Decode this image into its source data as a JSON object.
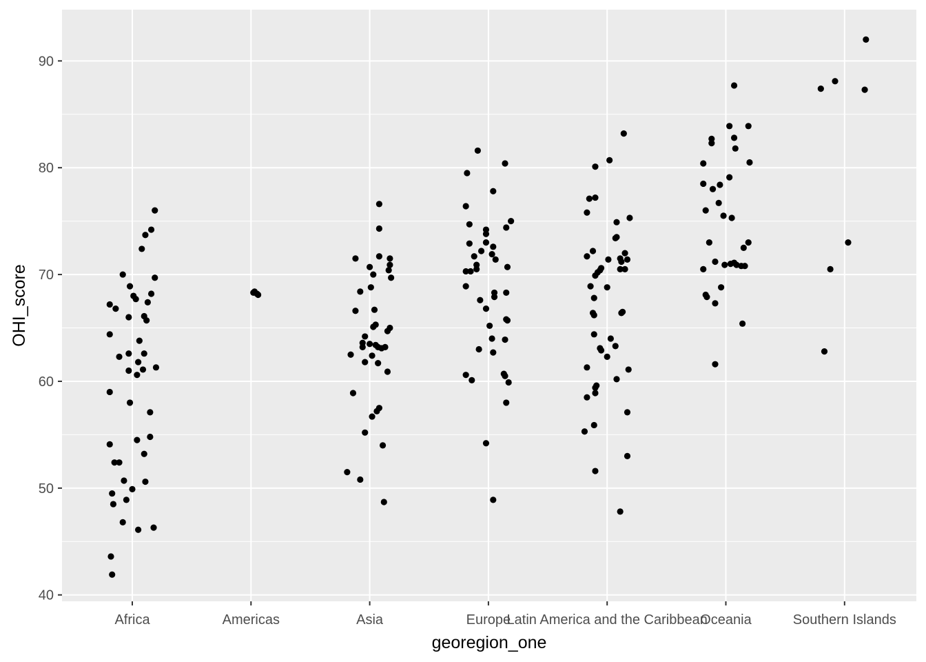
{
  "chart_data": {
    "type": "scatter",
    "subtype": "jitter",
    "title": "",
    "xlabel": "georegion_one",
    "ylabel": "OHI_score",
    "categories": [
      "Africa",
      "Americas",
      "Asia",
      "Europe",
      "Latin America and the Caribbean",
      "Oceania",
      "Southern Islands"
    ],
    "yticks": [
      40,
      50,
      60,
      70,
      80,
      90
    ],
    "ylim": [
      39.4,
      94.8
    ],
    "grid": true,
    "colors": {
      "panel": "#EBEBEB",
      "grid": "#FFFFFF",
      "point": "#000000",
      "tick_text": "#4D4D4D"
    },
    "points": [
      {
        "cat": 0,
        "jitter": -0.19,
        "y": 67.2
      },
      {
        "cat": 0,
        "jitter": -0.14,
        "y": 66.8
      },
      {
        "cat": 0,
        "jitter": -0.08,
        "y": 70.0
      },
      {
        "cat": 0,
        "jitter": -0.02,
        "y": 68.9
      },
      {
        "cat": 0,
        "jitter": 0.01,
        "y": 68.0
      },
      {
        "cat": 0,
        "jitter": 0.03,
        "y": 67.7
      },
      {
        "cat": 0,
        "jitter": -0.03,
        "y": 66.0
      },
      {
        "cat": 0,
        "jitter": 0.1,
        "y": 66.1
      },
      {
        "cat": 0,
        "jitter": 0.12,
        "y": 65.7
      },
      {
        "cat": 0,
        "jitter": -0.19,
        "y": 64.4
      },
      {
        "cat": 0,
        "jitter": 0.06,
        "y": 63.8
      },
      {
        "cat": 0,
        "jitter": -0.11,
        "y": 62.3
      },
      {
        "cat": 0,
        "jitter": -0.03,
        "y": 62.6
      },
      {
        "cat": 0,
        "jitter": 0.1,
        "y": 62.6
      },
      {
        "cat": 0,
        "jitter": 0.05,
        "y": 61.8
      },
      {
        "cat": 0,
        "jitter": -0.03,
        "y": 61.0
      },
      {
        "cat": 0,
        "jitter": 0.04,
        "y": 60.6
      },
      {
        "cat": 0,
        "jitter": 0.09,
        "y": 61.1
      },
      {
        "cat": 0,
        "jitter": 0.2,
        "y": 61.3
      },
      {
        "cat": 0,
        "jitter": -0.19,
        "y": 59.0
      },
      {
        "cat": 0,
        "jitter": -0.02,
        "y": 58.0
      },
      {
        "cat": 0,
        "jitter": 0.15,
        "y": 57.1
      },
      {
        "cat": 0,
        "jitter": 0.15,
        "y": 54.8
      },
      {
        "cat": 0,
        "jitter": 0.04,
        "y": 54.5
      },
      {
        "cat": 0,
        "jitter": -0.19,
        "y": 54.1
      },
      {
        "cat": 0,
        "jitter": 0.1,
        "y": 53.2
      },
      {
        "cat": 0,
        "jitter": -0.15,
        "y": 52.4
      },
      {
        "cat": 0,
        "jitter": -0.11,
        "y": 52.4
      },
      {
        "cat": 0,
        "jitter": -0.07,
        "y": 50.7
      },
      {
        "cat": 0,
        "jitter": 0.11,
        "y": 50.6
      },
      {
        "cat": 0,
        "jitter": 0.0,
        "y": 49.9
      },
      {
        "cat": 0,
        "jitter": -0.17,
        "y": 49.5
      },
      {
        "cat": 0,
        "jitter": -0.05,
        "y": 48.9
      },
      {
        "cat": 0,
        "jitter": -0.16,
        "y": 48.5
      },
      {
        "cat": 0,
        "jitter": -0.08,
        "y": 46.8
      },
      {
        "cat": 0,
        "jitter": 0.05,
        "y": 46.1
      },
      {
        "cat": 0,
        "jitter": 0.18,
        "y": 46.3
      },
      {
        "cat": 0,
        "jitter": -0.18,
        "y": 43.6
      },
      {
        "cat": 0,
        "jitter": -0.17,
        "y": 41.9
      },
      {
        "cat": 0,
        "jitter": 0.19,
        "y": 76.0
      },
      {
        "cat": 0,
        "jitter": 0.16,
        "y": 74.2
      },
      {
        "cat": 0,
        "jitter": 0.11,
        "y": 73.7
      },
      {
        "cat": 0,
        "jitter": 0.08,
        "y": 72.4
      },
      {
        "cat": 0,
        "jitter": 0.19,
        "y": 69.7
      },
      {
        "cat": 0,
        "jitter": 0.16,
        "y": 68.2
      },
      {
        "cat": 0,
        "jitter": 0.13,
        "y": 67.4
      },
      {
        "cat": 1,
        "jitter": 0.02,
        "y": 68.3
      },
      {
        "cat": 1,
        "jitter": 0.03,
        "y": 68.4
      },
      {
        "cat": 1,
        "jitter": 0.05,
        "y": 68.2
      },
      {
        "cat": 1,
        "jitter": 0.06,
        "y": 68.1
      },
      {
        "cat": 2,
        "jitter": 0.08,
        "y": 76.6
      },
      {
        "cat": 2,
        "jitter": 0.08,
        "y": 74.3
      },
      {
        "cat": 2,
        "jitter": 0.08,
        "y": 71.7
      },
      {
        "cat": 2,
        "jitter": 0.17,
        "y": 71.5
      },
      {
        "cat": 2,
        "jitter": -0.12,
        "y": 71.5
      },
      {
        "cat": 2,
        "jitter": 0.17,
        "y": 70.9
      },
      {
        "cat": 2,
        "jitter": 0.0,
        "y": 70.7
      },
      {
        "cat": 2,
        "jitter": 0.16,
        "y": 70.4
      },
      {
        "cat": 2,
        "jitter": 0.03,
        "y": 70.0
      },
      {
        "cat": 2,
        "jitter": 0.18,
        "y": 69.7
      },
      {
        "cat": 2,
        "jitter": 0.01,
        "y": 68.8
      },
      {
        "cat": 2,
        "jitter": -0.08,
        "y": 68.4
      },
      {
        "cat": 2,
        "jitter": 0.04,
        "y": 66.7
      },
      {
        "cat": 2,
        "jitter": -0.12,
        "y": 66.6
      },
      {
        "cat": 2,
        "jitter": 0.05,
        "y": 65.3
      },
      {
        "cat": 2,
        "jitter": 0.03,
        "y": 65.1
      },
      {
        "cat": 2,
        "jitter": 0.17,
        "y": 65.0
      },
      {
        "cat": 2,
        "jitter": 0.15,
        "y": 64.7
      },
      {
        "cat": 2,
        "jitter": -0.04,
        "y": 64.2
      },
      {
        "cat": 2,
        "jitter": -0.06,
        "y": 63.6
      },
      {
        "cat": 2,
        "jitter": 0.0,
        "y": 63.5
      },
      {
        "cat": 2,
        "jitter": 0.05,
        "y": 63.4
      },
      {
        "cat": 2,
        "jitter": 0.07,
        "y": 63.2
      },
      {
        "cat": 2,
        "jitter": -0.06,
        "y": 63.2
      },
      {
        "cat": 2,
        "jitter": 0.1,
        "y": 63.1
      },
      {
        "cat": 2,
        "jitter": 0.13,
        "y": 63.2
      },
      {
        "cat": 2,
        "jitter": -0.16,
        "y": 62.5
      },
      {
        "cat": 2,
        "jitter": 0.02,
        "y": 62.4
      },
      {
        "cat": 2,
        "jitter": -0.04,
        "y": 61.8
      },
      {
        "cat": 2,
        "jitter": 0.07,
        "y": 61.7
      },
      {
        "cat": 2,
        "jitter": 0.15,
        "y": 60.9
      },
      {
        "cat": 2,
        "jitter": -0.14,
        "y": 58.9
      },
      {
        "cat": 2,
        "jitter": 0.08,
        "y": 57.5
      },
      {
        "cat": 2,
        "jitter": 0.06,
        "y": 57.2
      },
      {
        "cat": 2,
        "jitter": 0.02,
        "y": 56.7
      },
      {
        "cat": 2,
        "jitter": -0.04,
        "y": 55.2
      },
      {
        "cat": 2,
        "jitter": 0.11,
        "y": 54.0
      },
      {
        "cat": 2,
        "jitter": -0.19,
        "y": 51.5
      },
      {
        "cat": 2,
        "jitter": -0.08,
        "y": 50.8
      },
      {
        "cat": 2,
        "jitter": 0.12,
        "y": 48.7
      },
      {
        "cat": 3,
        "jitter": -0.09,
        "y": 81.6
      },
      {
        "cat": 3,
        "jitter": 0.14,
        "y": 80.4
      },
      {
        "cat": 3,
        "jitter": -0.18,
        "y": 79.5
      },
      {
        "cat": 3,
        "jitter": 0.04,
        "y": 77.8
      },
      {
        "cat": 3,
        "jitter": -0.19,
        "y": 76.4
      },
      {
        "cat": 3,
        "jitter": 0.19,
        "y": 75.0
      },
      {
        "cat": 3,
        "jitter": -0.16,
        "y": 74.7
      },
      {
        "cat": 3,
        "jitter": 0.15,
        "y": 74.4
      },
      {
        "cat": 3,
        "jitter": -0.02,
        "y": 74.2
      },
      {
        "cat": 3,
        "jitter": -0.02,
        "y": 73.8
      },
      {
        "cat": 3,
        "jitter": -0.02,
        "y": 73.0
      },
      {
        "cat": 3,
        "jitter": -0.16,
        "y": 72.9
      },
      {
        "cat": 3,
        "jitter": 0.04,
        "y": 72.6
      },
      {
        "cat": 3,
        "jitter": -0.06,
        "y": 72.2
      },
      {
        "cat": 3,
        "jitter": 0.03,
        "y": 71.9
      },
      {
        "cat": 3,
        "jitter": -0.12,
        "y": 71.7
      },
      {
        "cat": 3,
        "jitter": 0.06,
        "y": 71.4
      },
      {
        "cat": 3,
        "jitter": -0.1,
        "y": 70.9
      },
      {
        "cat": 3,
        "jitter": -0.1,
        "y": 70.5
      },
      {
        "cat": 3,
        "jitter": 0.16,
        "y": 70.7
      },
      {
        "cat": 3,
        "jitter": -0.15,
        "y": 70.3
      },
      {
        "cat": 3,
        "jitter": -0.19,
        "y": 70.3
      },
      {
        "cat": 3,
        "jitter": -0.19,
        "y": 68.9
      },
      {
        "cat": 3,
        "jitter": 0.05,
        "y": 68.3
      },
      {
        "cat": 3,
        "jitter": 0.15,
        "y": 68.3
      },
      {
        "cat": 3,
        "jitter": 0.05,
        "y": 67.9
      },
      {
        "cat": 3,
        "jitter": -0.07,
        "y": 67.6
      },
      {
        "cat": 3,
        "jitter": -0.02,
        "y": 66.8
      },
      {
        "cat": 3,
        "jitter": 0.15,
        "y": 65.8
      },
      {
        "cat": 3,
        "jitter": 0.16,
        "y": 65.7
      },
      {
        "cat": 3,
        "jitter": 0.01,
        "y": 65.2
      },
      {
        "cat": 3,
        "jitter": 0.03,
        "y": 64.0
      },
      {
        "cat": 3,
        "jitter": 0.14,
        "y": 63.9
      },
      {
        "cat": 3,
        "jitter": -0.08,
        "y": 63.0
      },
      {
        "cat": 3,
        "jitter": 0.04,
        "y": 62.7
      },
      {
        "cat": 3,
        "jitter": -0.19,
        "y": 60.6
      },
      {
        "cat": 3,
        "jitter": 0.13,
        "y": 60.7
      },
      {
        "cat": 3,
        "jitter": 0.14,
        "y": 60.5
      },
      {
        "cat": 3,
        "jitter": -0.14,
        "y": 60.1
      },
      {
        "cat": 3,
        "jitter": 0.17,
        "y": 59.9
      },
      {
        "cat": 3,
        "jitter": 0.15,
        "y": 58.0
      },
      {
        "cat": 3,
        "jitter": -0.02,
        "y": 54.2
      },
      {
        "cat": 3,
        "jitter": 0.04,
        "y": 48.9
      },
      {
        "cat": 4,
        "jitter": 0.14,
        "y": 83.2
      },
      {
        "cat": 4,
        "jitter": 0.02,
        "y": 80.7
      },
      {
        "cat": 4,
        "jitter": -0.1,
        "y": 80.1
      },
      {
        "cat": 4,
        "jitter": -0.15,
        "y": 77.1
      },
      {
        "cat": 4,
        "jitter": -0.1,
        "y": 77.2
      },
      {
        "cat": 4,
        "jitter": -0.17,
        "y": 75.8
      },
      {
        "cat": 4,
        "jitter": 0.19,
        "y": 75.3
      },
      {
        "cat": 4,
        "jitter": 0.08,
        "y": 74.9
      },
      {
        "cat": 4,
        "jitter": 0.08,
        "y": 73.5
      },
      {
        "cat": 4,
        "jitter": 0.07,
        "y": 73.4
      },
      {
        "cat": 4,
        "jitter": -0.12,
        "y": 72.2
      },
      {
        "cat": 4,
        "jitter": 0.15,
        "y": 72.0
      },
      {
        "cat": 4,
        "jitter": -0.17,
        "y": 71.7
      },
      {
        "cat": 4,
        "jitter": 0.01,
        "y": 71.4
      },
      {
        "cat": 4,
        "jitter": 0.11,
        "y": 71.5
      },
      {
        "cat": 4,
        "jitter": 0.17,
        "y": 71.4
      },
      {
        "cat": 4,
        "jitter": 0.12,
        "y": 71.2
      },
      {
        "cat": 4,
        "jitter": -0.05,
        "y": 70.6
      },
      {
        "cat": 4,
        "jitter": -0.06,
        "y": 70.4
      },
      {
        "cat": 4,
        "jitter": -0.08,
        "y": 70.2
      },
      {
        "cat": 4,
        "jitter": -0.1,
        "y": 69.9
      },
      {
        "cat": 4,
        "jitter": 0.11,
        "y": 70.5
      },
      {
        "cat": 4,
        "jitter": 0.15,
        "y": 70.5
      },
      {
        "cat": 4,
        "jitter": -0.14,
        "y": 68.9
      },
      {
        "cat": 4,
        "jitter": 0.0,
        "y": 68.8
      },
      {
        "cat": 4,
        "jitter": -0.11,
        "y": 67.8
      },
      {
        "cat": 4,
        "jitter": -0.12,
        "y": 66.4
      },
      {
        "cat": 4,
        "jitter": -0.11,
        "y": 66.2
      },
      {
        "cat": 4,
        "jitter": 0.13,
        "y": 66.5
      },
      {
        "cat": 4,
        "jitter": 0.12,
        "y": 66.4
      },
      {
        "cat": 4,
        "jitter": -0.11,
        "y": 64.4
      },
      {
        "cat": 4,
        "jitter": 0.03,
        "y": 64.0
      },
      {
        "cat": 4,
        "jitter": -0.06,
        "y": 63.1
      },
      {
        "cat": 4,
        "jitter": -0.05,
        "y": 62.9
      },
      {
        "cat": 4,
        "jitter": 0.07,
        "y": 63.3
      },
      {
        "cat": 4,
        "jitter": 0.0,
        "y": 62.3
      },
      {
        "cat": 4,
        "jitter": -0.17,
        "y": 61.3
      },
      {
        "cat": 4,
        "jitter": 0.18,
        "y": 61.1
      },
      {
        "cat": 4,
        "jitter": 0.08,
        "y": 60.2
      },
      {
        "cat": 4,
        "jitter": -0.09,
        "y": 59.6
      },
      {
        "cat": 4,
        "jitter": -0.1,
        "y": 59.4
      },
      {
        "cat": 4,
        "jitter": -0.1,
        "y": 58.9
      },
      {
        "cat": 4,
        "jitter": -0.17,
        "y": 58.5
      },
      {
        "cat": 4,
        "jitter": 0.17,
        "y": 57.1
      },
      {
        "cat": 4,
        "jitter": -0.11,
        "y": 55.9
      },
      {
        "cat": 4,
        "jitter": -0.19,
        "y": 55.3
      },
      {
        "cat": 4,
        "jitter": 0.17,
        "y": 53.0
      },
      {
        "cat": 4,
        "jitter": -0.1,
        "y": 51.6
      },
      {
        "cat": 4,
        "jitter": 0.11,
        "y": 47.8
      },
      {
        "cat": 5,
        "jitter": 0.07,
        "y": 87.7
      },
      {
        "cat": 5,
        "jitter": 0.19,
        "y": 83.9
      },
      {
        "cat": 5,
        "jitter": 0.03,
        "y": 83.9
      },
      {
        "cat": 5,
        "jitter": 0.07,
        "y": 82.8
      },
      {
        "cat": 5,
        "jitter": -0.12,
        "y": 82.7
      },
      {
        "cat": 5,
        "jitter": -0.12,
        "y": 82.3
      },
      {
        "cat": 5,
        "jitter": 0.08,
        "y": 81.8
      },
      {
        "cat": 5,
        "jitter": 0.2,
        "y": 80.5
      },
      {
        "cat": 5,
        "jitter": -0.19,
        "y": 80.4
      },
      {
        "cat": 5,
        "jitter": 0.03,
        "y": 79.1
      },
      {
        "cat": 5,
        "jitter": -0.19,
        "y": 78.5
      },
      {
        "cat": 5,
        "jitter": -0.05,
        "y": 78.4
      },
      {
        "cat": 5,
        "jitter": -0.11,
        "y": 78.0
      },
      {
        "cat": 5,
        "jitter": -0.06,
        "y": 76.7
      },
      {
        "cat": 5,
        "jitter": -0.17,
        "y": 76.0
      },
      {
        "cat": 5,
        "jitter": -0.02,
        "y": 75.5
      },
      {
        "cat": 5,
        "jitter": 0.05,
        "y": 75.3
      },
      {
        "cat": 5,
        "jitter": 0.19,
        "y": 73.0
      },
      {
        "cat": 5,
        "jitter": -0.14,
        "y": 73.0
      },
      {
        "cat": 5,
        "jitter": 0.15,
        "y": 72.5
      },
      {
        "cat": 5,
        "jitter": -0.09,
        "y": 71.2
      },
      {
        "cat": 5,
        "jitter": 0.07,
        "y": 71.1
      },
      {
        "cat": 5,
        "jitter": 0.04,
        "y": 71.0
      },
      {
        "cat": 5,
        "jitter": -0.01,
        "y": 70.9
      },
      {
        "cat": 5,
        "jitter": 0.09,
        "y": 70.9
      },
      {
        "cat": 5,
        "jitter": 0.16,
        "y": 70.8
      },
      {
        "cat": 5,
        "jitter": 0.13,
        "y": 70.8
      },
      {
        "cat": 5,
        "jitter": -0.19,
        "y": 70.5
      },
      {
        "cat": 5,
        "jitter": -0.04,
        "y": 68.8
      },
      {
        "cat": 5,
        "jitter": -0.17,
        "y": 68.1
      },
      {
        "cat": 5,
        "jitter": -0.16,
        "y": 67.9
      },
      {
        "cat": 5,
        "jitter": -0.09,
        "y": 67.3
      },
      {
        "cat": 5,
        "jitter": 0.14,
        "y": 65.4
      },
      {
        "cat": 5,
        "jitter": -0.09,
        "y": 61.6
      },
      {
        "cat": 6,
        "jitter": 0.18,
        "y": 92.0
      },
      {
        "cat": 6,
        "jitter": -0.08,
        "y": 88.1
      },
      {
        "cat": 6,
        "jitter": -0.2,
        "y": 87.4
      },
      {
        "cat": 6,
        "jitter": 0.17,
        "y": 87.3
      },
      {
        "cat": 6,
        "jitter": 0.03,
        "y": 73.0
      },
      {
        "cat": 6,
        "jitter": -0.12,
        "y": 70.5
      },
      {
        "cat": 6,
        "jitter": -0.17,
        "y": 62.8
      }
    ]
  }
}
